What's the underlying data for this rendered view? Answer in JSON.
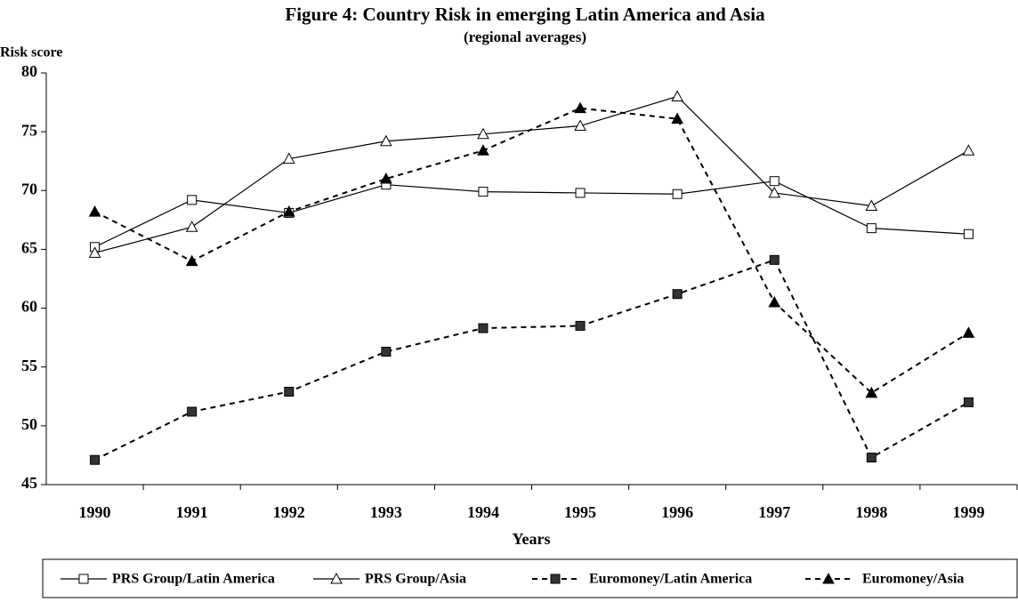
{
  "chart_data": {
    "type": "line",
    "title": "Figure 4: Country Risk in emerging Latin America and Asia",
    "subtitle": "(regional averages)",
    "y_label": "Risk score",
    "x_label": "Years",
    "categories": [
      "1990",
      "1991",
      "1992",
      "1993",
      "1994",
      "1995",
      "1996",
      "1997",
      "1998",
      "1999"
    ],
    "series": [
      {
        "name": "PRS Group/Latin America",
        "color": "#000000",
        "line_style": "solid",
        "marker": "square",
        "marker_filled": false,
        "values": [
          65.2,
          69.2,
          68.1,
          70.5,
          69.9,
          69.8,
          69.7,
          70.8,
          66.8,
          66.3
        ]
      },
      {
        "name": "PRS Group/Asia",
        "color": "#000000",
        "line_style": "solid",
        "marker": "triangle",
        "marker_filled": false,
        "values": [
          64.7,
          66.9,
          72.7,
          74.2,
          74.8,
          75.5,
          78.0,
          69.8,
          68.7,
          73.4
        ]
      },
      {
        "name": "Euromoney/Latin America",
        "color": "#000000",
        "line_style": "dashed",
        "marker": "square",
        "marker_filled": true,
        "values": [
          47.1,
          51.2,
          52.9,
          56.3,
          58.3,
          58.5,
          61.2,
          64.1,
          47.3,
          52.0
        ]
      },
      {
        "name": "Euromoney/Asia",
        "color": "#000000",
        "line_style": "dashed",
        "marker": "triangle",
        "marker_filled": true,
        "values": [
          68.2,
          64.0,
          68.2,
          71.0,
          73.4,
          77.0,
          76.1,
          60.5,
          52.8,
          57.9
        ]
      }
    ],
    "ylim": [
      45,
      80
    ],
    "yticks": [
      45,
      50,
      55,
      60,
      65,
      70,
      75,
      80
    ],
    "grid": false,
    "legend": "bottom"
  }
}
